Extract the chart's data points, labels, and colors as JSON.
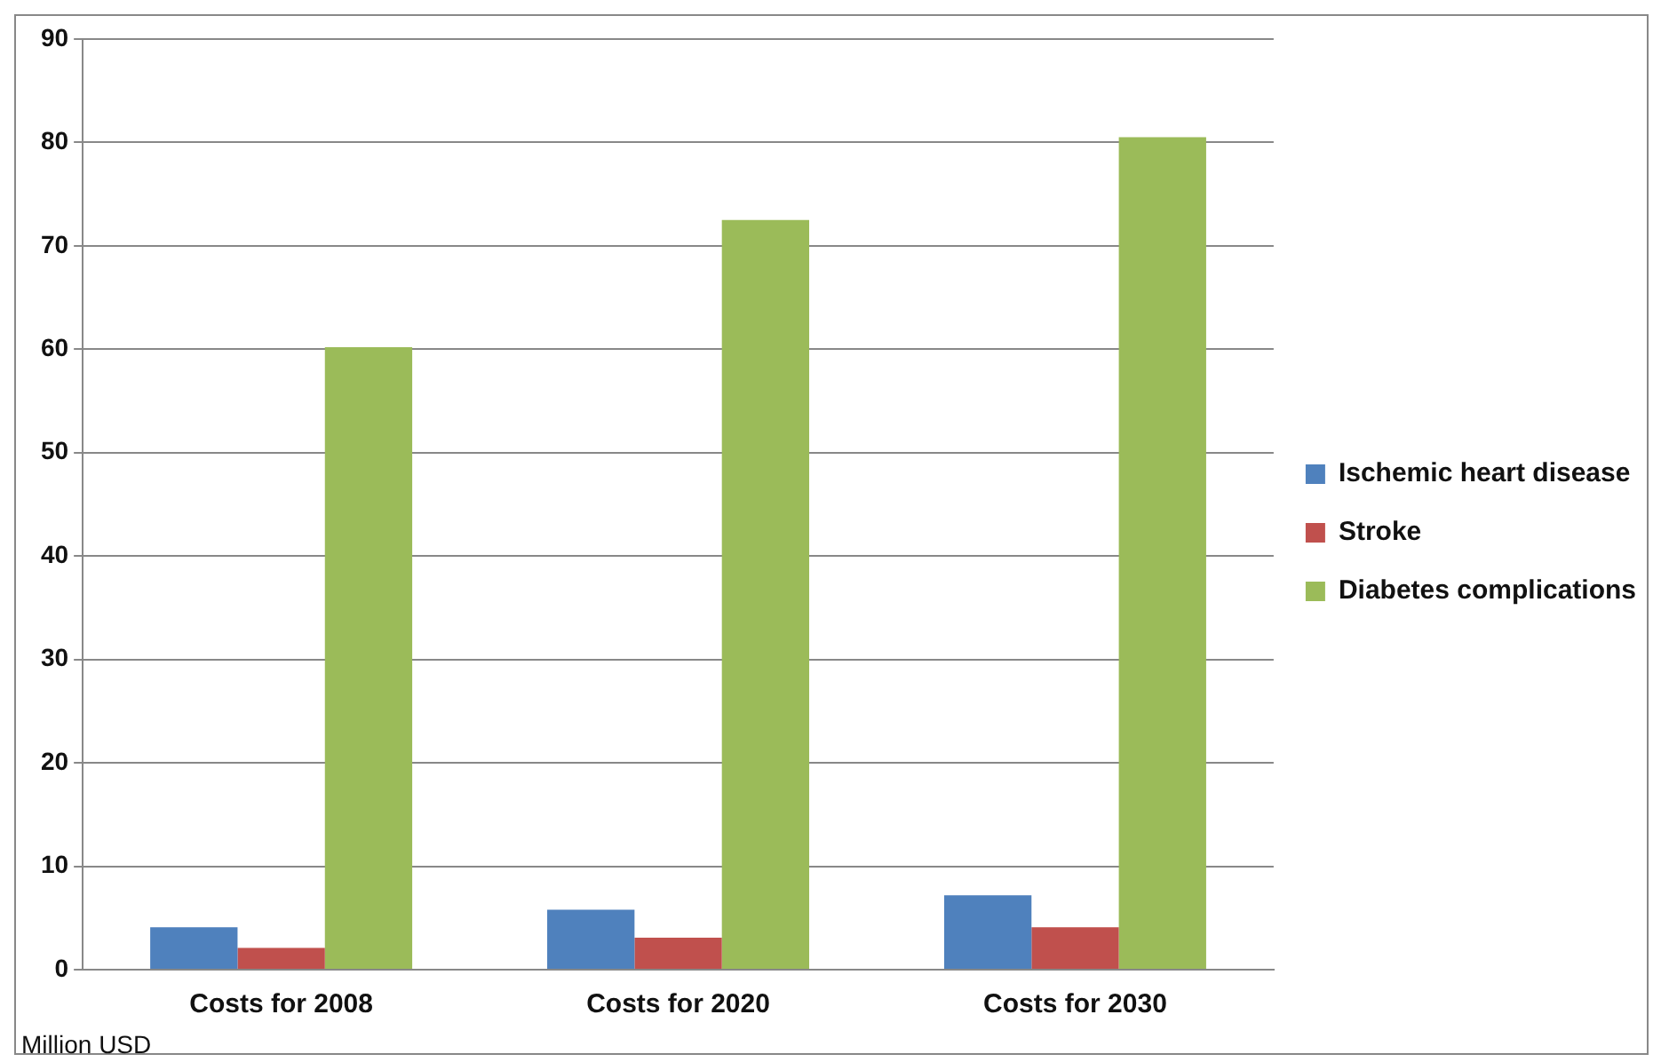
{
  "chart_data": {
    "type": "bar",
    "categories": [
      "Costs for 2008",
      "Costs for 2020",
      "Costs for 2030"
    ],
    "series": [
      {
        "name": "Ischemic heart disease",
        "color": "#4f81bd",
        "values": [
          4.1,
          5.8,
          7.2
        ]
      },
      {
        "name": "Stroke",
        "color": "#c0504d",
        "values": [
          2.1,
          3.1,
          4.1
        ]
      },
      {
        "name": "Diabetes complications",
        "color": "#9bbb59",
        "values": [
          60.2,
          72.5,
          80.5
        ]
      }
    ],
    "ylim": [
      0,
      90
    ],
    "yticks": [
      0,
      10,
      20,
      30,
      40,
      50,
      60,
      70,
      80,
      90
    ],
    "grid": "y",
    "legend": "right",
    "annotations": [
      "Million USD"
    ]
  }
}
